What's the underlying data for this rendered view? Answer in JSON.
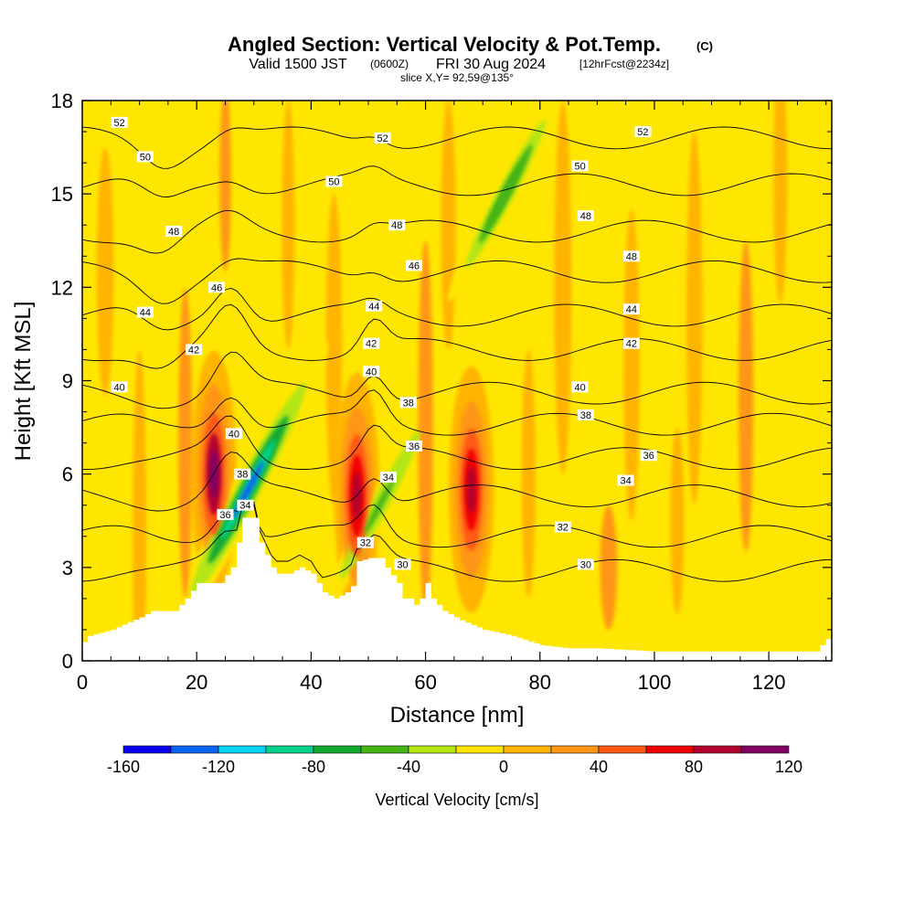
{
  "header": {
    "title": "Angled Section: Vertical Velocity & Pot.Temp.",
    "title_mark": "(C)",
    "subtitle_a": "Valid 1500 JST",
    "subtitle_b": "(0600Z)",
    "subtitle_c": "FRI 30 Aug 2024",
    "subtitle_d": "[12hrFcst@2234z]",
    "slice": "slice X,Y= 92,59@135°"
  },
  "chart_data": {
    "type": "heatmap",
    "title": "Angled Section: Vertical Velocity & Pot.Temp. (C)",
    "xlabel": "Distance [nm]",
    "ylabel": "Height [Kft MSL]",
    "xlim": [
      0,
      131
    ],
    "ylim": [
      0,
      18
    ],
    "x_ticks": [
      0,
      20,
      40,
      60,
      80,
      100,
      120
    ],
    "y_ticks": [
      0,
      3,
      6,
      9,
      12,
      15,
      18
    ],
    "colorbar": {
      "title": "Vertical Velocity [cm/s]",
      "ticks": [
        -160,
        -120,
        -80,
        -40,
        0,
        40,
        80,
        120
      ],
      "levels": [
        -160,
        -140,
        -120,
        -100,
        -80,
        -60,
        -40,
        -20,
        0,
        20,
        40,
        60,
        80,
        100,
        120
      ],
      "colors": [
        "#0a00f0",
        "#0a64f0",
        "#00d2f0",
        "#00d28c",
        "#14aa32",
        "#46b414",
        "#b4e614",
        "#ffe600",
        "#ffb400",
        "#ff9614",
        "#ff5a14",
        "#f00000",
        "#b40032",
        "#820064"
      ]
    },
    "terrain_kft": [
      [
        0,
        0.6
      ],
      [
        1,
        0.8
      ],
      [
        5,
        1.0
      ],
      [
        10,
        1.4
      ],
      [
        12,
        1.6
      ],
      [
        16,
        1.6
      ],
      [
        18,
        2.0
      ],
      [
        20,
        2.5
      ],
      [
        22,
        2.5
      ],
      [
        24,
        2.5
      ],
      [
        26,
        3.0
      ],
      [
        28,
        4.6
      ],
      [
        30,
        4.6
      ],
      [
        31,
        3.8
      ],
      [
        33,
        3.0
      ],
      [
        34,
        2.8
      ],
      [
        36,
        2.8
      ],
      [
        38,
        3.0
      ],
      [
        40,
        2.8
      ],
      [
        42,
        2.2
      ],
      [
        44,
        2.0
      ],
      [
        46,
        2.2
      ],
      [
        47,
        2.4
      ],
      [
        48,
        3.2
      ],
      [
        50,
        3.3
      ],
      [
        52,
        3.3
      ],
      [
        53,
        3.0
      ],
      [
        55,
        2.5
      ],
      [
        56,
        2.0
      ],
      [
        57,
        2.0
      ],
      [
        58,
        1.8
      ],
      [
        59,
        2.0
      ],
      [
        60,
        2.5
      ],
      [
        61,
        2.0
      ],
      [
        63,
        1.6
      ],
      [
        66,
        1.3
      ],
      [
        70,
        1.0
      ],
      [
        75,
        0.8
      ],
      [
        80,
        0.5
      ],
      [
        85,
        0.4
      ],
      [
        90,
        0.4
      ],
      [
        100,
        0.3
      ],
      [
        110,
        0.3
      ],
      [
        120,
        0.3
      ],
      [
        128,
        0.3
      ],
      [
        131,
        0.9
      ]
    ],
    "isentropes": {
      "levels": [
        30,
        32,
        34,
        36,
        38,
        40,
        42,
        44,
        46,
        48,
        50,
        52
      ],
      "labels": [
        {
          "text": "30",
          "x": 56,
          "y": 3.1
        },
        {
          "text": "30",
          "x": 88,
          "y": 3.1
        },
        {
          "text": "32",
          "x": 49.5,
          "y": 3.8
        },
        {
          "text": "32",
          "x": 84,
          "y": 4.3
        },
        {
          "text": "34",
          "x": 28.5,
          "y": 5.0
        },
        {
          "text": "34",
          "x": 53.5,
          "y": 5.9
        },
        {
          "text": "34",
          "x": 95,
          "y": 5.8
        },
        {
          "text": "36",
          "x": 25,
          "y": 4.7
        },
        {
          "text": "36",
          "x": 58,
          "y": 6.9
        },
        {
          "text": "36",
          "x": 99,
          "y": 6.6
        },
        {
          "text": "38",
          "x": 28,
          "y": 6.0
        },
        {
          "text": "38",
          "x": 57,
          "y": 8.3
        },
        {
          "text": "38",
          "x": 88,
          "y": 7.9
        },
        {
          "text": "40",
          "x": 26.5,
          "y": 7.3
        },
        {
          "text": "40",
          "x": 50.5,
          "y": 9.3
        },
        {
          "text": "40",
          "x": 6.5,
          "y": 8.8
        },
        {
          "text": "40",
          "x": 87,
          "y": 8.8
        },
        {
          "text": "42",
          "x": 19.5,
          "y": 10.0
        },
        {
          "text": "42",
          "x": 50.5,
          "y": 10.2
        },
        {
          "text": "42",
          "x": 96,
          "y": 10.2
        },
        {
          "text": "44",
          "x": 11,
          "y": 11.2
        },
        {
          "text": "44",
          "x": 51,
          "y": 11.4
        },
        {
          "text": "44",
          "x": 96,
          "y": 11.3
        },
        {
          "text": "46",
          "x": 23.5,
          "y": 12.0
        },
        {
          "text": "46",
          "x": 58,
          "y": 12.7
        },
        {
          "text": "48",
          "x": 16,
          "y": 13.8
        },
        {
          "text": "48",
          "x": 55,
          "y": 14.0
        },
        {
          "text": "48",
          "x": 88,
          "y": 14.3
        },
        {
          "text": "48",
          "x": 96,
          "y": 13.0
        },
        {
          "text": "50",
          "x": 11,
          "y": 16.2
        },
        {
          "text": "50",
          "x": 44,
          "y": 15.4
        },
        {
          "text": "50",
          "x": 87,
          "y": 15.9
        },
        {
          "text": "52",
          "x": 6.5,
          "y": 17.3
        },
        {
          "text": "52",
          "x": 52.5,
          "y": 16.8
        },
        {
          "text": "52",
          "x": 98,
          "y": 17.0
        }
      ]
    },
    "features": [
      {
        "kind": "updraft",
        "x": 23,
        "y": 6.0,
        "peak_cm_s": 110
      },
      {
        "kind": "updraft",
        "x": 48,
        "y": 5.3,
        "peak_cm_s": 80
      },
      {
        "kind": "updraft",
        "x": 68,
        "y": 5.5,
        "peak_cm_s": 80
      },
      {
        "kind": "downdraft",
        "x": 29,
        "y": 5.5,
        "peak_cm_s": -130
      },
      {
        "kind": "downdraft",
        "x": 52,
        "y": 5.0,
        "peak_cm_s": -50
      },
      {
        "kind": "downdraft",
        "x": 74,
        "y": 15.0,
        "peak_cm_s": -60
      }
    ]
  }
}
